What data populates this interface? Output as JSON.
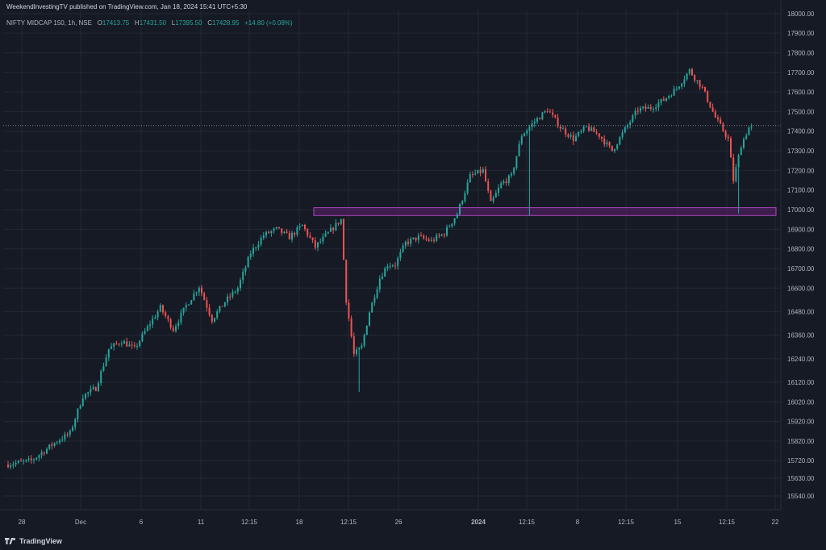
{
  "header": {
    "published": "WeekendInvestingTV published on TradingView.com, Jan 18, 2024 15:41 UTC+5:30"
  },
  "legend": {
    "symbol": "NIFTY MIDCAP 150, 1h, NSE",
    "open_label": "O",
    "open": "17413.75",
    "high_label": "H",
    "high": "17431.50",
    "low_label": "L",
    "low": "17395.50",
    "close_label": "C",
    "close": "17428.95",
    "change": "+14.80 (+0.08%)"
  },
  "footer": {
    "brand": "TradingView"
  },
  "colors": {
    "background": "#161a25",
    "up": "#26a69a",
    "down": "#ef5350",
    "zone_fill": "#5c1f6e",
    "zone_stroke": "#ab47bc",
    "grid": "#232836",
    "price_line": "#787b86"
  },
  "chart_data": {
    "type": "candlestick",
    "ylim": [
      15470,
      18020
    ],
    "y_ticks": [
      18000,
      17900,
      17800,
      17700,
      17600,
      17500,
      17400,
      17300,
      17200,
      17100,
      17000,
      16900,
      16800,
      16700,
      16600,
      16480,
      16360,
      16240,
      16120,
      16020,
      15920,
      15820,
      15720,
      15630,
      15540
    ],
    "x_ticks": [
      "28",
      "Dec",
      "6",
      "11",
      "12:15",
      "18",
      "12:15",
      "26",
      "2024",
      "12:15",
      "8",
      "12:15",
      "15",
      "12:15",
      "22"
    ],
    "last_price": 17428.95,
    "support_zone": [
      16970,
      17010
    ],
    "keyframes": [
      [
        0,
        15700
      ],
      [
        10,
        15720
      ],
      [
        20,
        15820
      ],
      [
        25,
        15860
      ],
      [
        30,
        16050
      ],
      [
        35,
        16090
      ],
      [
        40,
        16290
      ],
      [
        45,
        16330
      ],
      [
        50,
        16290
      ],
      [
        55,
        16400
      ],
      [
        60,
        16500
      ],
      [
        65,
        16390
      ],
      [
        70,
        16510
      ],
      [
        75,
        16610
      ],
      [
        80,
        16440
      ],
      [
        85,
        16530
      ],
      [
        90,
        16600
      ],
      [
        95,
        16780
      ],
      [
        100,
        16870
      ],
      [
        105,
        16900
      ],
      [
        110,
        16860
      ],
      [
        115,
        16920
      ],
      [
        120,
        16810
      ],
      [
        125,
        16880
      ],
      [
        130,
        16950
      ],
      [
        132,
        16540
      ],
      [
        135,
        16260
      ],
      [
        138,
        16300
      ],
      [
        141,
        16480
      ],
      [
        145,
        16650
      ],
      [
        148,
        16720
      ],
      [
        151,
        16720
      ],
      [
        155,
        16830
      ],
      [
        160,
        16860
      ],
      [
        165,
        16840
      ],
      [
        170,
        16880
      ],
      [
        175,
        16980
      ],
      [
        180,
        17170
      ],
      [
        185,
        17200
      ],
      [
        188,
        17030
      ],
      [
        192,
        17130
      ],
      [
        196,
        17170
      ],
      [
        200,
        17380
      ],
      [
        205,
        17450
      ],
      [
        210,
        17510
      ],
      [
        215,
        17420
      ],
      [
        220,
        17360
      ],
      [
        225,
        17420
      ],
      [
        230,
        17380
      ],
      [
        235,
        17300
      ],
      [
        240,
        17410
      ],
      [
        245,
        17510
      ],
      [
        250,
        17520
      ],
      [
        255,
        17560
      ],
      [
        260,
        17620
      ],
      [
        265,
        17710
      ],
      [
        270,
        17620
      ],
      [
        275,
        17470
      ],
      [
        280,
        17360
      ],
      [
        282,
        17150
      ],
      [
        285,
        17330
      ],
      [
        288,
        17420
      ]
    ],
    "n_candles": 289
  }
}
